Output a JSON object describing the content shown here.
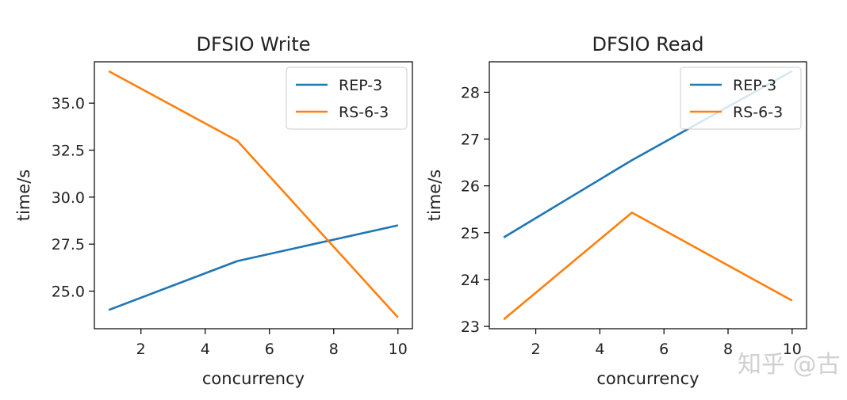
{
  "chart_data": [
    {
      "type": "line",
      "title": "DFSIO Write",
      "xlabel": "concurrency",
      "ylabel": "time/s",
      "xlim": [
        0.55,
        10.45
      ],
      "ylim": [
        23.0,
        37.2
      ],
      "xticks": [
        2,
        4,
        6,
        8,
        10
      ],
      "yticks": [
        25.0,
        27.5,
        30.0,
        32.5,
        35.0
      ],
      "ytick_labels": [
        "25.0",
        "27.5",
        "30.0",
        "32.5",
        "35.0"
      ],
      "legend_position": "upper right",
      "grid": false,
      "series": [
        {
          "name": "REP-3",
          "color": "#1f77b4",
          "x": [
            1,
            5,
            10
          ],
          "y": [
            24.0,
            26.6,
            28.5
          ]
        },
        {
          "name": "RS-6-3",
          "color": "#ff7f0e",
          "x": [
            1,
            5,
            10
          ],
          "y": [
            36.7,
            33.0,
            23.6
          ]
        }
      ]
    },
    {
      "type": "line",
      "title": "DFSIO Read",
      "xlabel": "concurrency",
      "ylabel": "time/s",
      "xlim": [
        0.55,
        10.45
      ],
      "ylim": [
        22.95,
        28.65
      ],
      "xticks": [
        2,
        4,
        6,
        8,
        10
      ],
      "yticks": [
        23,
        24,
        25,
        26,
        27,
        28
      ],
      "ytick_labels": [
        "23",
        "24",
        "25",
        "26",
        "27",
        "28"
      ],
      "legend_position": "upper right",
      "grid": false,
      "series": [
        {
          "name": "REP-3",
          "color": "#1f77b4",
          "x": [
            1,
            5,
            10
          ],
          "y": [
            24.9,
            26.55,
            28.45
          ]
        },
        {
          "name": "RS-6-3",
          "color": "#ff7f0e",
          "x": [
            1,
            5,
            10
          ],
          "y": [
            23.15,
            25.43,
            23.55
          ]
        }
      ]
    }
  ],
  "watermark": {
    "text": "知乎 @古"
  }
}
